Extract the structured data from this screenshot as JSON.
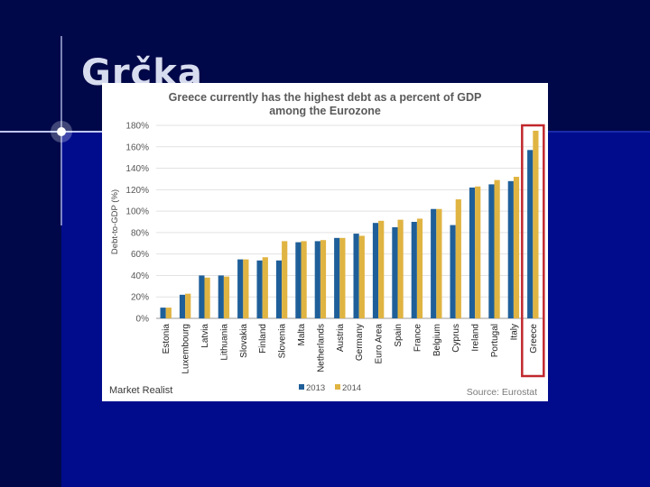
{
  "slide": {
    "title": "Grčka",
    "colors": {
      "background": "#000c8c",
      "band": "#00084a",
      "flare": "#e8ecff"
    }
  },
  "chart_data": {
    "type": "bar",
    "title": "Greece currently  has the highest debt as a percent of GDP",
    "subtitle": "among the Eurozone",
    "xlabel": "",
    "ylabel": "Debt-to-GDP (%)",
    "ylim": [
      0,
      180
    ],
    "yticks": [
      "0%",
      "20%",
      "40%",
      "60%",
      "80%",
      "100%",
      "120%",
      "140%",
      "160%",
      "180%"
    ],
    "grid": true,
    "legend_position": "bottom",
    "categories": [
      "Estonia",
      "Luxembourg",
      "Latvia",
      "Lithuania",
      "Slovakia",
      "Finland",
      "Slovenia",
      "Malta",
      "Netherlands",
      "Austria",
      "Germany",
      "Euro Area",
      "Spain",
      "France",
      "Belgium",
      "Cyprus",
      "Ireland",
      "Portugal",
      "Italy",
      "Greece"
    ],
    "series": [
      {
        "name": "2013",
        "color": "#1f5f99",
        "values": [
          10,
          22,
          40,
          40,
          55,
          54,
          54,
          71,
          72,
          75,
          79,
          89,
          85,
          90,
          102,
          87,
          122,
          125,
          128,
          157
        ]
      },
      {
        "name": "2014",
        "color": "#e0b442",
        "values": [
          10,
          23,
          38,
          39,
          55,
          57,
          72,
          72,
          73,
          75,
          77,
          91,
          92,
          93,
          102,
          111,
          123,
          129,
          132,
          175
        ]
      }
    ],
    "highlight": {
      "category": "Greece",
      "color": "#c0282d"
    }
  },
  "footer": {
    "brand": "Market Realist",
    "source": "Source: Eurostat"
  }
}
